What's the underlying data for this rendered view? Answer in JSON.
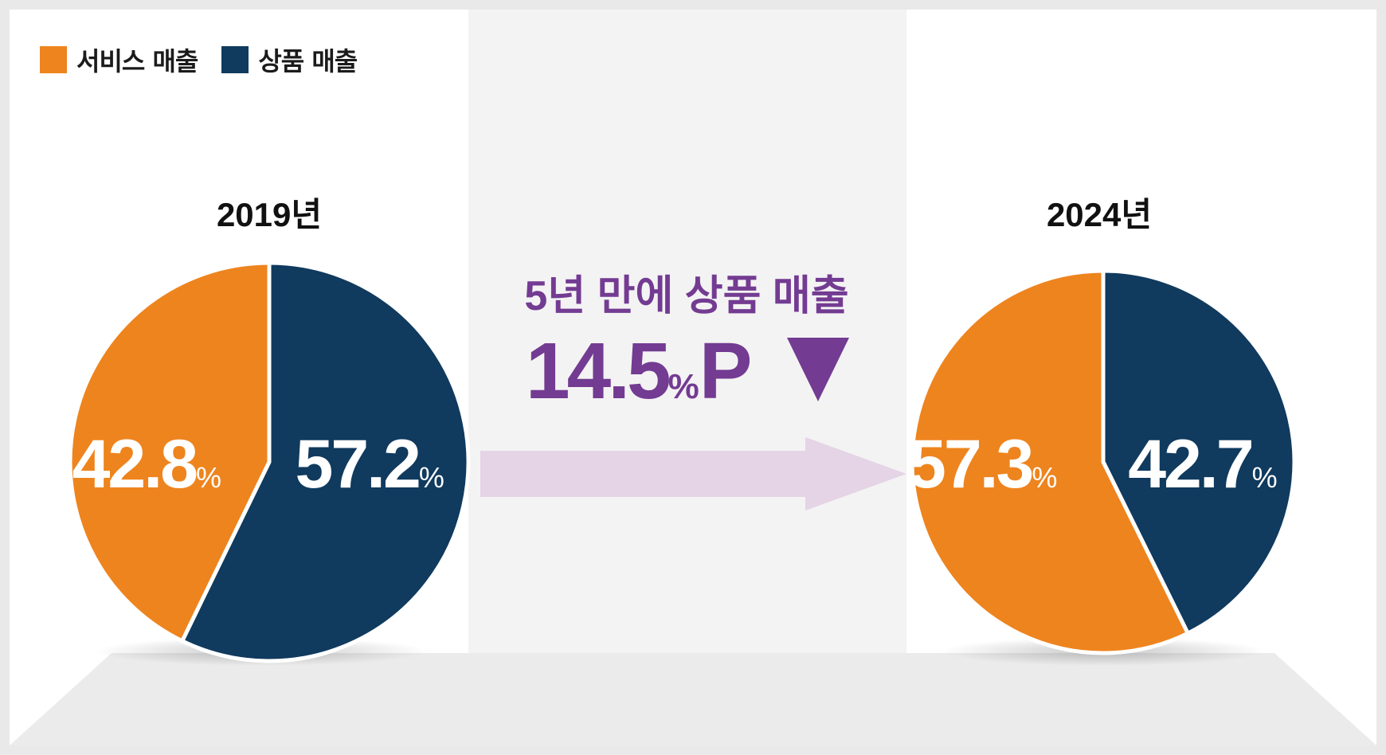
{
  "legend": {
    "items": [
      {
        "label": "서비스 매출",
        "color": "#ee841e"
      },
      {
        "label": "상품 매출",
        "color": "#103a5e"
      }
    ]
  },
  "chart_data": [
    {
      "type": "pie",
      "title": "2019년",
      "series": [
        {
          "name": "서비스 매출",
          "value": 42.8,
          "color": "#ee841e"
        },
        {
          "name": "상품 매출",
          "value": 57.2,
          "color": "#103a5e"
        }
      ],
      "value_suffix": "%"
    },
    {
      "type": "pie",
      "title": "2024년",
      "series": [
        {
          "name": "서비스 매출",
          "value": 57.3,
          "color": "#ee841e"
        },
        {
          "name": "상품 매출",
          "value": 42.7,
          "color": "#103a5e"
        }
      ],
      "value_suffix": "%"
    }
  ],
  "change": {
    "headline": "5년 만에 상품 매출",
    "value": "14.5",
    "unit": "%",
    "suffix": "P",
    "direction_icon": "down-triangle-icon",
    "accent_color": "#733b92"
  }
}
